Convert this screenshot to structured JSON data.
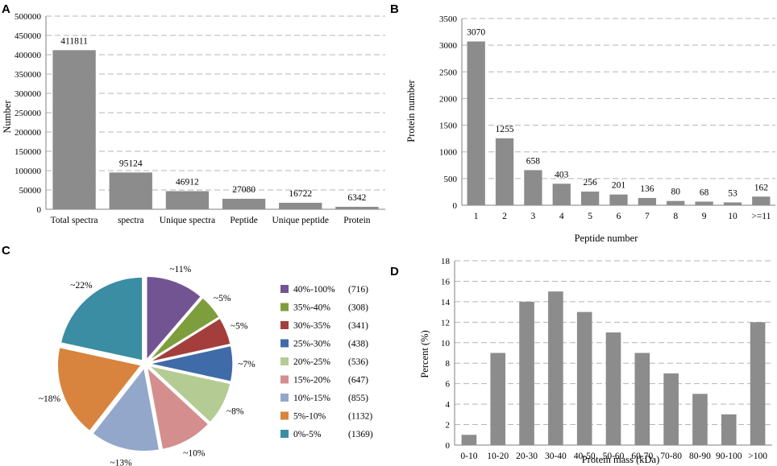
{
  "chart_data": [
    {
      "id": "A",
      "panel_label": "A",
      "type": "bar",
      "title": "",
      "xlabel": "",
      "ylabel": "Number",
      "ylim": [
        0,
        500000
      ],
      "ytick_step": 50000,
      "yticks": [
        "0",
        "50000",
        "100000",
        "150000",
        "200000",
        "250000",
        "300000",
        "350000",
        "400000",
        "450000",
        "500000"
      ],
      "categories": [
        "Total spectra",
        "spectra",
        "Unique spectra",
        "Peptide",
        "Unique peptide",
        "Protein"
      ],
      "values": [
        411811,
        95124,
        46912,
        27080,
        16722,
        6342
      ],
      "data_labels": [
        "411811",
        "95124",
        "46912",
        "27080",
        "16722",
        "6342"
      ],
      "bar_color": "#8c8c8c",
      "grid": true
    },
    {
      "id": "B",
      "panel_label": "B",
      "type": "bar",
      "title": "",
      "xlabel": "Peptide number",
      "ylabel": "Protein number",
      "ylim": [
        0,
        3500
      ],
      "ytick_step": 500,
      "yticks": [
        "0",
        "500",
        "1000",
        "1500",
        "2000",
        "2500",
        "3000",
        "3500"
      ],
      "categories": [
        "1",
        "2",
        "3",
        "4",
        "5",
        "6",
        "7",
        "8",
        "9",
        "10",
        ">=11"
      ],
      "values": [
        3070,
        1255,
        658,
        403,
        256,
        201,
        136,
        80,
        68,
        53,
        162
      ],
      "data_labels": [
        "3070",
        "1255",
        "658",
        "403",
        "256",
        "201",
        "136",
        "80",
        "68",
        "53",
        "162"
      ],
      "bar_color": "#8c8c8c",
      "grid": true
    },
    {
      "id": "C",
      "panel_label": "C",
      "type": "pie",
      "title": "",
      "slices": [
        {
          "label": "40%-100%",
          "count_label": "(716)",
          "value": 716,
          "pct_label": "~11%",
          "color": "#735493"
        },
        {
          "label": "35%-40%",
          "count_label": "(308)",
          "value": 308,
          "pct_label": "~5%",
          "color": "#7e9e3e"
        },
        {
          "label": "30%-35%",
          "count_label": "(341)",
          "value": 341,
          "pct_label": "~5%",
          "color": "#a43e3c"
        },
        {
          "label": "25%-30%",
          "count_label": "(438)",
          "value": 438,
          "pct_label": "~7%",
          "color": "#3f6ba8"
        },
        {
          "label": "20%-25%",
          "count_label": "(536)",
          "value": 536,
          "pct_label": "~8%",
          "color": "#b4cc94"
        },
        {
          "label": "15%-20%",
          "count_label": "(647)",
          "value": 647,
          "pct_label": "~10%",
          "color": "#d48e8e"
        },
        {
          "label": "10%-15%",
          "count_label": "(855)",
          "value": 855,
          "pct_label": "~13%",
          "color": "#93a7cb"
        },
        {
          "label": "5%-10%",
          "count_label": "(1132)",
          "value": 1132,
          "pct_label": "~18%",
          "color": "#d8843e"
        },
        {
          "label": "0%-5%",
          "count_label": "(1369)",
          "value": 1369,
          "pct_label": "~22%",
          "color": "#3a8da2"
        }
      ],
      "legend_position": "right"
    },
    {
      "id": "D",
      "panel_label": "D",
      "type": "bar",
      "title": "",
      "xlabel": "Protein mass (kDa)",
      "ylabel": "Percent (%)",
      "ylim": [
        0,
        18
      ],
      "ytick_step": 2,
      "yticks": [
        "0",
        "2",
        "4",
        "6",
        "8",
        "10",
        "12",
        "14",
        "16",
        "18"
      ],
      "categories": [
        "0-10",
        "10-20",
        "20-30",
        "30-40",
        "40-50",
        "50-60",
        "60-70",
        "70-80",
        "80-90",
        "90-100",
        ">100"
      ],
      "values": [
        1,
        9,
        14,
        15,
        13,
        11,
        9,
        7,
        5,
        3,
        12
      ],
      "bar_color": "#8c8c8c",
      "grid": true
    }
  ]
}
